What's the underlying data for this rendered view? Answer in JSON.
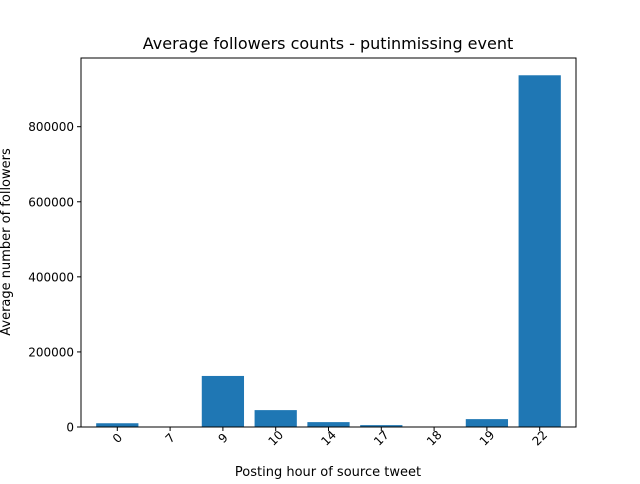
{
  "chart_data": {
    "type": "bar",
    "title": "Average followers counts - putinmissing event",
    "xlabel": "Posting hour of source tweet",
    "ylabel": "Average number of followers",
    "categories": [
      "0",
      "7",
      "9",
      "10",
      "14",
      "17",
      "18",
      "19",
      "22"
    ],
    "values": [
      10000,
      500,
      136000,
      45000,
      13000,
      5000,
      300,
      21000,
      937000
    ],
    "ylim": [
      0,
      983000
    ],
    "yticks": [
      0,
      200000,
      400000,
      600000,
      800000
    ],
    "ytick_labels": [
      "0",
      "200000",
      "400000",
      "600000",
      "800000"
    ],
    "xtick_rotation_deg": 45,
    "grid": false,
    "legend": "none",
    "bar_color": "#1f77b4"
  }
}
